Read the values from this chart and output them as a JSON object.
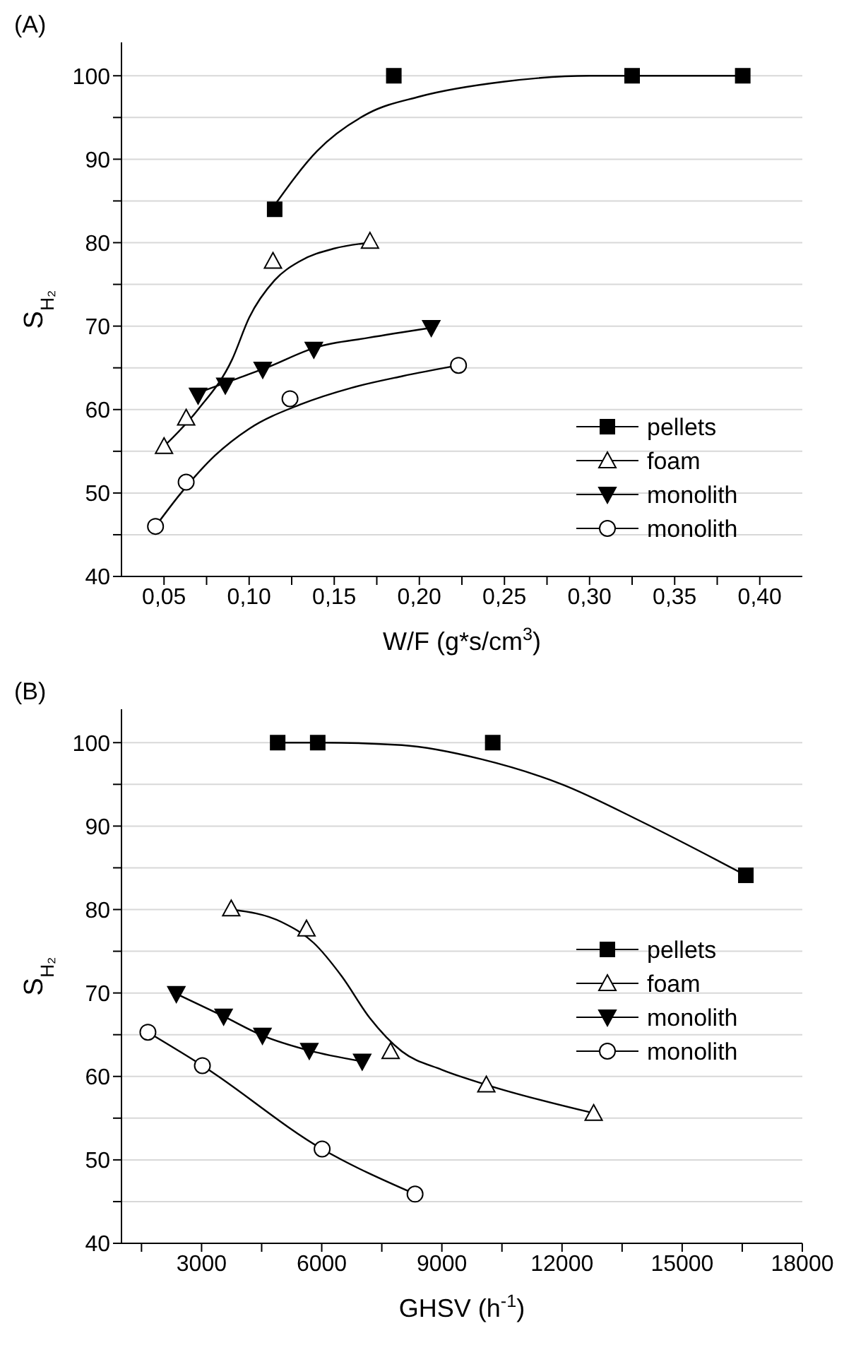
{
  "chart_data": [
    {
      "type": "scatter",
      "title": "(A)",
      "xlabel": "W/F (g*s/cm$^{3}$)",
      "ylabel": "S$_{H₂}$",
      "xlim": [
        0.025,
        0.425
      ],
      "ylim": [
        40,
        104
      ],
      "xticks": [
        {
          "value": 0.05,
          "label": "0,05"
        },
        {
          "value": 0.075,
          "label": null
        },
        {
          "value": 0.1,
          "label": "0,10"
        },
        {
          "value": 0.125,
          "label": null
        },
        {
          "value": 0.15,
          "label": "0,15"
        },
        {
          "value": 0.175,
          "label": null
        },
        {
          "value": 0.2,
          "label": "0,20"
        },
        {
          "value": 0.225,
          "label": null
        },
        {
          "value": 0.25,
          "label": "0,25"
        },
        {
          "value": 0.275,
          "label": null
        },
        {
          "value": 0.3,
          "label": "0,30"
        },
        {
          "value": 0.325,
          "label": null
        },
        {
          "value": 0.35,
          "label": "0,35"
        },
        {
          "value": 0.375,
          "label": null
        },
        {
          "value": 0.4,
          "label": "0,40"
        }
      ],
      "yticks": [
        40,
        {
          "value": 45,
          "label": null
        },
        50,
        {
          "value": 55,
          "label": null
        },
        60,
        {
          "value": 65,
          "label": null
        },
        70,
        {
          "value": 75,
          "label": null
        },
        80,
        {
          "value": 85,
          "label": null
        },
        90,
        {
          "value": 95,
          "label": null
        },
        100
      ],
      "grid": "y",
      "legend": "bottom right",
      "series": [
        {
          "name": "pellets",
          "type": "scatter",
          "marker": "square",
          "color": "#000000",
          "x": [
            0.115,
            0.185,
            0.325,
            0.39
          ],
          "values": [
            84,
            100,
            100,
            100
          ]
        },
        {
          "name": "foam",
          "type": "scatter",
          "marker": "triangle",
          "color": "#000000",
          "x": [
            0.05,
            0.063,
            0.114,
            0.171
          ],
          "values": [
            55.6,
            59,
            77.8,
            80.2
          ]
        },
        {
          "name": "monolith",
          "type": "scatter",
          "marker": "triangle-down",
          "color": "#000000",
          "x": [
            0.07,
            0.086,
            0.108,
            0.138,
            0.207
          ],
          "values": [
            61.7,
            62.9,
            64.8,
            67.2,
            69.8
          ]
        },
        {
          "name": "monolith",
          "type": "scatter",
          "marker": "circle",
          "color": "#000000",
          "x": [
            0.045,
            0.063,
            0.124,
            0.223
          ],
          "values": [
            46,
            51.3,
            61.3,
            65.3
          ]
        },
        {
          "type": "line",
          "marker": "none",
          "color": "#000000",
          "x": [
            0.115,
            0.14,
            0.17,
            0.2,
            0.25,
            0.3,
            0.39
          ],
          "values": [
            84.5,
            91,
            95.5,
            97.5,
            99.3,
            100,
            100
          ]
        },
        {
          "type": "line",
          "marker": "none",
          "color": "#000000",
          "x": [
            0.05,
            0.07,
            0.09,
            0.1,
            0.115,
            0.13,
            0.15,
            0.171
          ],
          "values": [
            55.6,
            60,
            66,
            71,
            75.5,
            77.8,
            79.3,
            80
          ]
        },
        {
          "type": "line",
          "marker": "none",
          "color": "#000000",
          "x": [
            0.07,
            0.09,
            0.11,
            0.14,
            0.17,
            0.207
          ],
          "values": [
            62,
            63.5,
            65,
            67.5,
            68.6,
            69.8
          ]
        },
        {
          "type": "line",
          "marker": "none",
          "color": "#000000",
          "x": [
            0.045,
            0.06,
            0.08,
            0.1,
            0.13,
            0.16,
            0.19,
            0.223
          ],
          "values": [
            46,
            50,
            54.5,
            57.7,
            60.6,
            62.6,
            64,
            65.3
          ]
        }
      ]
    },
    {
      "type": "scatter",
      "title": "(B)",
      "xlabel": "GHSV (h$^{-1}$)",
      "ylabel": "S$_{H₂}$",
      "xlim": [
        1000,
        18000
      ],
      "ylim": [
        40,
        104
      ],
      "xticks": [
        {
          "value": 1500,
          "label": null
        },
        3000,
        {
          "value": 4500,
          "label": null
        },
        6000,
        {
          "value": 7500,
          "label": null
        },
        9000,
        {
          "value": 10500,
          "label": null
        },
        12000,
        {
          "value": 13500,
          "label": null
        },
        15000,
        {
          "value": 16500,
          "label": null
        },
        18000
      ],
      "yticks": [
        40,
        {
          "value": 45,
          "label": null
        },
        50,
        {
          "value": 55,
          "label": null
        },
        60,
        {
          "value": 65,
          "label": null
        },
        70,
        {
          "value": 75,
          "label": null
        },
        80,
        {
          "value": 85,
          "label": null
        },
        90,
        {
          "value": 95,
          "label": null
        },
        100
      ],
      "grid": "y",
      "legend": "right",
      "series": [
        {
          "name": "pellets",
          "type": "scatter",
          "marker": "square",
          "color": "#000000",
          "x": [
            4900,
            5900,
            10270,
            16590
          ],
          "values": [
            100,
            100,
            100,
            84.1
          ]
        },
        {
          "name": "foam",
          "type": "scatter",
          "marker": "triangle",
          "color": "#000000",
          "x": [
            3740,
            5620,
            7720,
            10110,
            12790
          ],
          "values": [
            80.1,
            77.7,
            63,
            59,
            55.6
          ]
        },
        {
          "name": "monolith",
          "type": "scatter",
          "marker": "triangle-down",
          "color": "#000000",
          "x": [
            2370,
            3550,
            4520,
            5690,
            7010
          ],
          "values": [
            69.9,
            67.2,
            64.9,
            63.1,
            61.8
          ]
        },
        {
          "name": "monolith",
          "type": "scatter",
          "marker": "circle",
          "color": "#000000",
          "x": [
            1660,
            3020,
            6010,
            8330
          ],
          "values": [
            65.3,
            61.3,
            51.3,
            45.9
          ]
        },
        {
          "type": "line",
          "marker": "none",
          "color": "#000000",
          "x": [
            4900,
            6000,
            8000,
            10000,
            12000,
            14000,
            16590
          ],
          "values": [
            100,
            100,
            99.7,
            98,
            95,
            90.5,
            84.1
          ]
        },
        {
          "type": "line",
          "marker": "none",
          "color": "#000000",
          "x": [
            3740,
            5000,
            5800,
            6500,
            7200,
            8000,
            9000,
            10110,
            12790
          ],
          "values": [
            80,
            78.5,
            76,
            72,
            67,
            63,
            60.8,
            59,
            55.6
          ]
        },
        {
          "type": "line",
          "marker": "none",
          "color": "#000000",
          "x": [
            2370,
            3550,
            4520,
            5690,
            7010
          ],
          "values": [
            69.9,
            67.2,
            64.9,
            63.1,
            61.8
          ]
        },
        {
          "type": "line",
          "marker": "none",
          "color": "#000000",
          "x": [
            1660,
            3020,
            6010,
            8330
          ],
          "values": [
            65.3,
            61.3,
            51.3,
            45.9
          ]
        }
      ]
    }
  ]
}
